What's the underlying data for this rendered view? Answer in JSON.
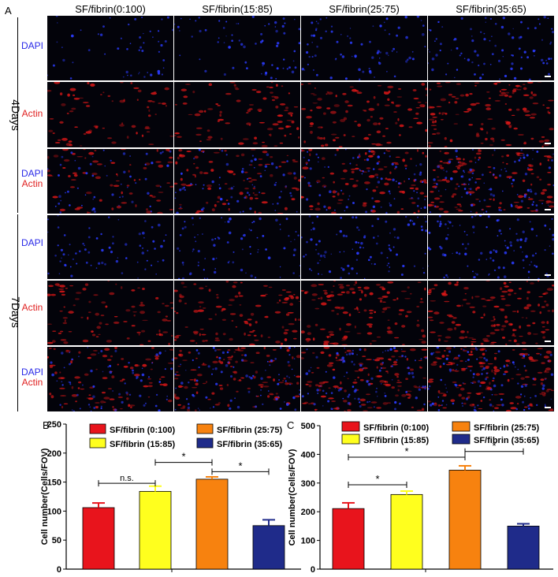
{
  "panel_a": {
    "letter": "A",
    "columns": [
      "SF/fibrin(0:100)",
      "SF/fibrin(15:85)",
      "SF/fibrin(25:75)",
      "SF/fibrin(35:65)"
    ],
    "groups": [
      {
        "label": "4Days",
        "rows": [
          {
            "type": "dapi",
            "label_blue": "DAPI",
            "label_red": ""
          },
          {
            "type": "actin",
            "label_blue": "",
            "label_red": "Actin"
          },
          {
            "type": "merge",
            "label_blue": "DAPI",
            "label_red": "Actin"
          }
        ]
      },
      {
        "label": "7Days",
        "rows": [
          {
            "type": "dapi",
            "label_blue": "DAPI",
            "label_red": ""
          },
          {
            "type": "actin",
            "label_blue": "",
            "label_red": "Actin"
          },
          {
            "type": "merge",
            "label_blue": "DAPI",
            "label_red": "Actin"
          }
        ]
      }
    ]
  },
  "colors": {
    "red": "#e8141c",
    "yellow": "#ffff1e",
    "orange": "#f7820f",
    "navy": "#1f2b8a",
    "dapi": "#2b3cff",
    "actin": "#e01818"
  },
  "chart_data": [
    {
      "type": "bar",
      "letter": "B",
      "ylabel": "Cell number(Cells/FOV)",
      "ylim": [
        0,
        250
      ],
      "yticks": [
        0,
        50,
        100,
        150,
        200,
        250
      ],
      "categories": [
        "SF/fibrin (0:100)",
        "SF/fibrin (15:85)",
        "SF/fibrin (25:75)",
        "SF/fibrin (35:65)"
      ],
      "values": [
        106,
        134,
        155,
        75
      ],
      "errors": [
        8,
        9,
        4,
        10
      ],
      "legend": [
        "SF/fibrin (0:100)",
        "SF/fibrin (15:85)",
        "SF/fibrin (25:75)",
        "SF/fibrin (35:65)"
      ],
      "annotations": [
        {
          "from": 0,
          "to": 1,
          "y": 148,
          "text": "n.s."
        },
        {
          "from": 1,
          "to": 2,
          "y": 184,
          "text": "*"
        },
        {
          "from": 2,
          "to": 3,
          "y": 168,
          "text": "*"
        }
      ]
    },
    {
      "type": "bar",
      "letter": "C",
      "ylabel": "Cell number(Cells/FOV)",
      "ylim": [
        0,
        500
      ],
      "yticks": [
        0,
        100,
        200,
        300,
        400,
        500
      ],
      "categories": [
        "SF/fibrin (0:100)",
        "SF/fibrin (15:85)",
        "SF/fibrin (25:75)",
        "SF/fibrin (35:65)"
      ],
      "values": [
        211,
        260,
        345,
        150
      ],
      "errors": [
        20,
        12,
        15,
        8
      ],
      "legend": [
        "SF/fibrin (0:100)",
        "SF/fibrin (15:85)",
        "SF/fibrin (25:75)",
        "SF/fibrin (35:65)"
      ],
      "annotations": [
        {
          "from": 0,
          "to": 1,
          "y": 294,
          "text": "*"
        },
        {
          "from": 0,
          "to": 2,
          "y": 390,
          "text": "*"
        },
        {
          "from": 2,
          "to": 3,
          "y": 410,
          "text": "*"
        }
      ]
    }
  ]
}
